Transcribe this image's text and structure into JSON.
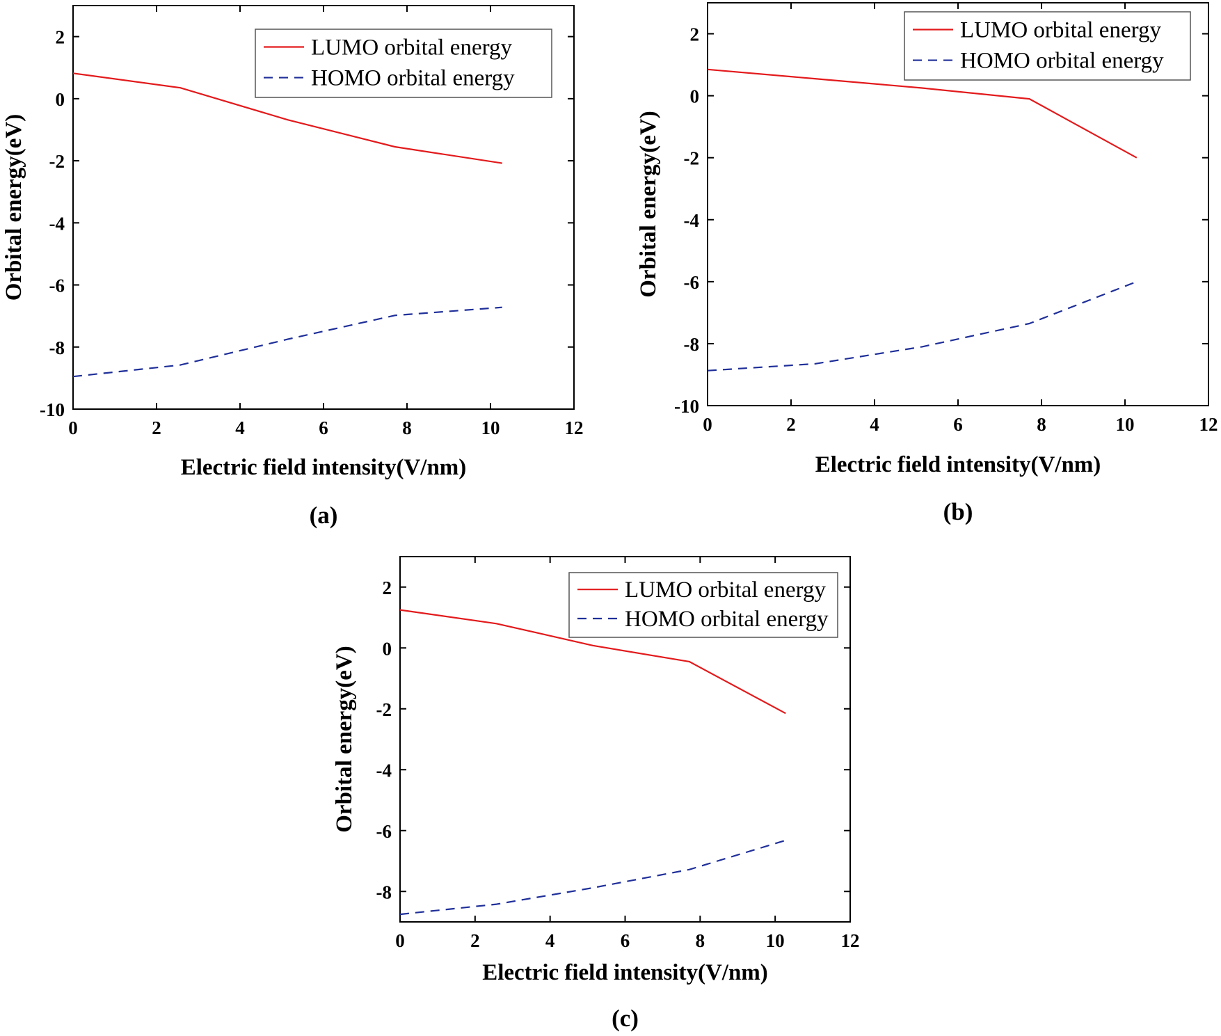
{
  "chart_data": [
    {
      "type": "line",
      "panel_label": "(a)",
      "xlabel": "Electric field intensity(V/nm)",
      "ylabel": "Orbital energy(eV)",
      "xlim": [
        0,
        12
      ],
      "ylim": [
        -10,
        3
      ],
      "xticks": [
        0,
        2,
        4,
        6,
        8,
        10,
        12
      ],
      "yticks": [
        -10,
        -8,
        -6,
        -4,
        -2,
        0,
        2
      ],
      "legend_position": "top-right",
      "series": [
        {
          "name": "LUMO orbital energy",
          "color": "#e31a1c",
          "style": "solid",
          "x": [
            0,
            2.57,
            5.14,
            7.71,
            10.28
          ],
          "values": [
            0.82,
            0.35,
            -0.68,
            -1.55,
            -2.08
          ]
        },
        {
          "name": "HOMO orbital energy",
          "color": "#1f2f99",
          "style": "dashed",
          "x": [
            0,
            2.57,
            5.14,
            7.71,
            10.28
          ],
          "values": [
            -8.95,
            -8.58,
            -7.75,
            -6.98,
            -6.72
          ]
        }
      ]
    },
    {
      "type": "line",
      "panel_label": "(b)",
      "xlabel": "Electric field intensity(V/nm)",
      "ylabel": "Orbital energy(eV)",
      "xlim": [
        0,
        12
      ],
      "ylim": [
        -10,
        3
      ],
      "xticks": [
        0,
        2,
        4,
        6,
        8,
        10,
        12
      ],
      "yticks": [
        -10,
        -8,
        -6,
        -4,
        -2,
        0,
        2
      ],
      "legend_position": "top-right",
      "series": [
        {
          "name": "LUMO orbital energy",
          "color": "#e31a1c",
          "style": "solid",
          "x": [
            0,
            2.57,
            5.14,
            7.71,
            10.28
          ],
          "values": [
            0.85,
            0.55,
            0.25,
            -0.1,
            -2.0
          ]
        },
        {
          "name": "HOMO orbital energy",
          "color": "#1f2f99",
          "style": "dashed",
          "x": [
            0,
            2.57,
            5.14,
            7.71,
            10.28
          ],
          "values": [
            -8.87,
            -8.65,
            -8.1,
            -7.35,
            -6.0
          ]
        }
      ]
    },
    {
      "type": "line",
      "panel_label": "(c)",
      "xlabel": "Electric field intensity(V/nm)",
      "ylabel": "Orbital energy(eV)",
      "xlim": [
        0,
        12
      ],
      "ylim": [
        -9,
        3
      ],
      "xticks": [
        0,
        2,
        4,
        6,
        8,
        10,
        12
      ],
      "yticks": [
        -8,
        -6,
        -4,
        -2,
        0,
        2
      ],
      "legend_position": "top-right",
      "series": [
        {
          "name": "LUMO orbital energy",
          "color": "#e31a1c",
          "style": "solid",
          "x": [
            0,
            2.57,
            5.14,
            7.71,
            10.28
          ],
          "values": [
            1.25,
            0.8,
            0.08,
            -0.45,
            -2.15
          ]
        },
        {
          "name": "HOMO orbital energy",
          "color": "#1f2f99",
          "style": "dashed",
          "x": [
            0,
            2.57,
            5.14,
            7.71,
            10.28
          ],
          "values": [
            -8.75,
            -8.42,
            -7.88,
            -7.28,
            -6.32
          ]
        }
      ]
    }
  ]
}
